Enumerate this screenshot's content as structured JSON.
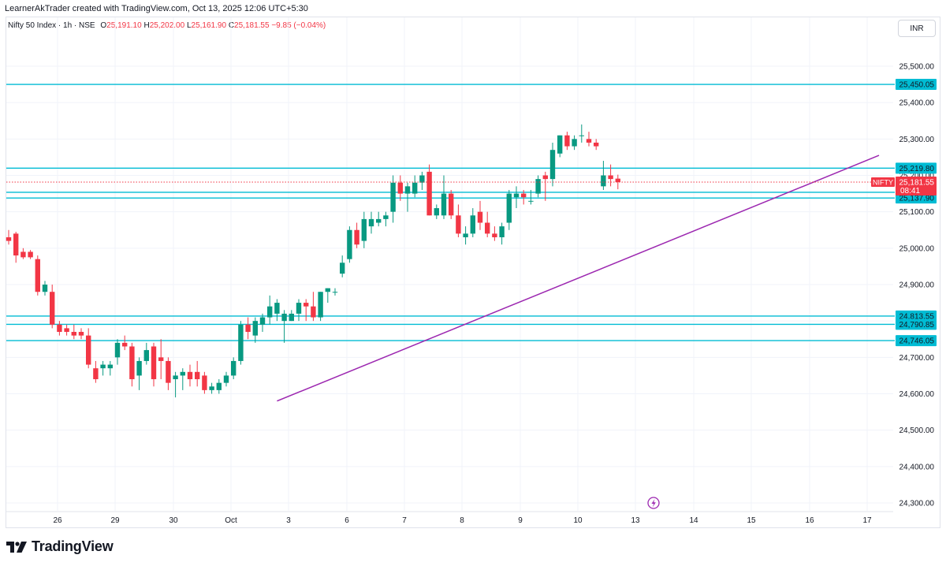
{
  "header": {
    "text": "LearnerAkTrader created with TradingView.com, Oct 13, 2025 12:06 UTC+5:30"
  },
  "legend": {
    "symbol": "Nifty 50 Index · 1h · NSE",
    "o_label": "O",
    "o": "25,191.10",
    "h_label": "H",
    "h": "25,202.00",
    "l_label": "L",
    "l": "25,161.90",
    "c_label": "C",
    "c": "25,181.55",
    "change": "−9.85 (−0.04%)"
  },
  "currency": "INR",
  "footer": {
    "brand": "TradingView"
  },
  "colors": {
    "up": "#089981",
    "down": "#f23645",
    "level": "#00bcd4",
    "trend": "#9c27b0",
    "grid": "#f0f3fa"
  },
  "chart_data": {
    "type": "candlestick",
    "title": "Nifty 50 Index · 1h · NSE",
    "y_ticks": [
      24300,
      24400,
      24500,
      24600,
      24700,
      24800,
      24900,
      25000,
      25100,
      25200,
      25300,
      25400,
      25500
    ],
    "y_tick_labels": [
      "24,300.00",
      "24,400.00",
      "24,500.00",
      "24,600.00",
      "24,700.00",
      "24,800.00",
      "24,900.00",
      "25,000.00",
      "25,100.00",
      "25,200.00",
      "25,300.00",
      "25,400.00",
      "25,500.00"
    ],
    "x_labels": [
      "26",
      "29",
      "30",
      "Oct",
      "3",
      "6",
      "7",
      "8",
      "9",
      "10",
      "13",
      "14",
      "15",
      "16",
      "17"
    ],
    "horizontal_levels": [
      {
        "value": 25450.05,
        "label": "25,450.05"
      },
      {
        "value": 25219.8,
        "label": "25,219.80"
      },
      {
        "value": 25153.65,
        "label": "25,153.65"
      },
      {
        "value": 25137.9,
        "label": "25,137.90"
      },
      {
        "value": 24813.55,
        "label": "24,813.55"
      },
      {
        "value": 24790.85,
        "label": "24,790.85"
      },
      {
        "value": 24746.05,
        "label": "24,746.05"
      }
    ],
    "last_price": {
      "symbol": "NIFTY",
      "value": 25181.55,
      "label": "25,181.55",
      "countdown": "08:41"
    },
    "trendline": {
      "from": {
        "bar": 37,
        "price": 24580
      },
      "to": {
        "bar": 120,
        "price": 25255
      }
    },
    "candles": [
      [
        25030,
        25050,
        25010,
        25020
      ],
      [
        25040,
        25045,
        24960,
        24980
      ],
      [
        24990,
        25000,
        24970,
        24975
      ],
      [
        24990,
        24995,
        24970,
        24975
      ],
      [
        24970,
        24980,
        24870,
        24880
      ],
      [
        24880,
        24910,
        24870,
        24900
      ],
      [
        24880,
        24900,
        24780,
        24790
      ],
      [
        24790,
        24800,
        24760,
        24770
      ],
      [
        24780,
        24790,
        24760,
        24770
      ],
      [
        24770,
        24790,
        24750,
        24760
      ],
      [
        24770,
        24780,
        24750,
        24760
      ],
      [
        24760,
        24780,
        24670,
        24680
      ],
      [
        24670,
        24690,
        24630,
        24640
      ],
      [
        24670,
        24690,
        24650,
        24680
      ],
      [
        24670,
        24690,
        24650,
        24680
      ],
      [
        24700,
        24750,
        24680,
        24740
      ],
      [
        24740,
        24760,
        24720,
        24730
      ],
      [
        24730,
        24740,
        24620,
        24640
      ],
      [
        24650,
        24700,
        24610,
        24690
      ],
      [
        24690,
        24740,
        24680,
        24720
      ],
      [
        24730,
        24740,
        24620,
        24640
      ],
      [
        24700,
        24750,
        24640,
        24690
      ],
      [
        24690,
        24700,
        24610,
        24630
      ],
      [
        24640,
        24660,
        24590,
        24650
      ],
      [
        24650,
        24670,
        24610,
        24660
      ],
      [
        24660,
        24680,
        24620,
        24640
      ],
      [
        24660,
        24690,
        24620,
        24640
      ],
      [
        24650,
        24660,
        24600,
        24610
      ],
      [
        24610,
        24630,
        24600,
        24620
      ],
      [
        24610,
        24640,
        24600,
        24630
      ],
      [
        24630,
        24660,
        24620,
        24650
      ],
      [
        24650,
        24700,
        24640,
        24690
      ],
      [
        24690,
        24800,
        24680,
        24790
      ],
      [
        24790,
        24810,
        24750,
        24770
      ],
      [
        24760,
        24810,
        24740,
        24800
      ],
      [
        24790,
        24820,
        24770,
        24810
      ],
      [
        24810,
        24870,
        24790,
        24840
      ],
      [
        24820,
        24860,
        24800,
        24850
      ],
      [
        24800,
        24830,
        24740,
        24820
      ],
      [
        24800,
        24830,
        24800,
        24820
      ],
      [
        24820,
        24860,
        24800,
        24850
      ],
      [
        24850,
        24860,
        24800,
        24840
      ],
      [
        24840,
        24880,
        24800,
        24810
      ],
      [
        24810,
        24880,
        24800,
        24880
      ],
      [
        24880,
        24890,
        24850,
        24890
      ],
      [
        24880,
        24890,
        24870,
        24880
      ],
      [
        24930,
        24980,
        24920,
        24960
      ],
      [
        24970,
        25060,
        24960,
        25050
      ],
      [
        25050,
        25070,
        25000,
        25010
      ],
      [
        25020,
        25100,
        25000,
        25080
      ],
      [
        25060,
        25100,
        25040,
        25080
      ],
      [
        25070,
        25100,
        25060,
        25080
      ],
      [
        25080,
        25100,
        25060,
        25090
      ],
      [
        25100,
        25200,
        25070,
        25180
      ],
      [
        25180,
        25200,
        25130,
        25150
      ],
      [
        25150,
        25180,
        25100,
        25170
      ],
      [
        25150,
        25200,
        25140,
        25180
      ],
      [
        25180,
        25210,
        25160,
        25200
      ],
      [
        25210,
        25230,
        25090,
        25090
      ],
      [
        25090,
        25120,
        25080,
        25110
      ],
      [
        25090,
        25200,
        25080,
        25150
      ],
      [
        25150,
        25160,
        25080,
        25090
      ],
      [
        25090,
        25120,
        25030,
        25040
      ],
      [
        25030,
        25060,
        25010,
        25040
      ],
      [
        25040,
        25110,
        25030,
        25090
      ],
      [
        25100,
        25130,
        25050,
        25070
      ],
      [
        25070,
        25100,
        25030,
        25040
      ],
      [
        25040,
        25060,
        25020,
        25030
      ],
      [
        25030,
        25070,
        25010,
        25060
      ],
      [
        25070,
        25160,
        25050,
        25150
      ],
      [
        25140,
        25170,
        25110,
        25150
      ],
      [
        25150,
        25160,
        25120,
        25140
      ],
      [
        25130,
        25160,
        25120,
        25130
      ],
      [
        25150,
        25200,
        25140,
        25190
      ],
      [
        25200,
        25210,
        25130,
        25190
      ],
      [
        25190,
        25290,
        25170,
        25270
      ],
      [
        25260,
        25310,
        25250,
        25310
      ],
      [
        25310,
        25320,
        25270,
        25280
      ],
      [
        25280,
        25310,
        25270,
        25300
      ],
      [
        25310,
        25340,
        25290,
        25310
      ],
      [
        25300,
        25320,
        25280,
        25290
      ],
      [
        25290,
        25300,
        25270,
        25280
      ],
      [
        25170,
        25240,
        25160,
        25200
      ],
      [
        25200,
        25230,
        25170,
        25190
      ],
      [
        25191.1,
        25202,
        25161.9,
        25181.55
      ]
    ]
  }
}
